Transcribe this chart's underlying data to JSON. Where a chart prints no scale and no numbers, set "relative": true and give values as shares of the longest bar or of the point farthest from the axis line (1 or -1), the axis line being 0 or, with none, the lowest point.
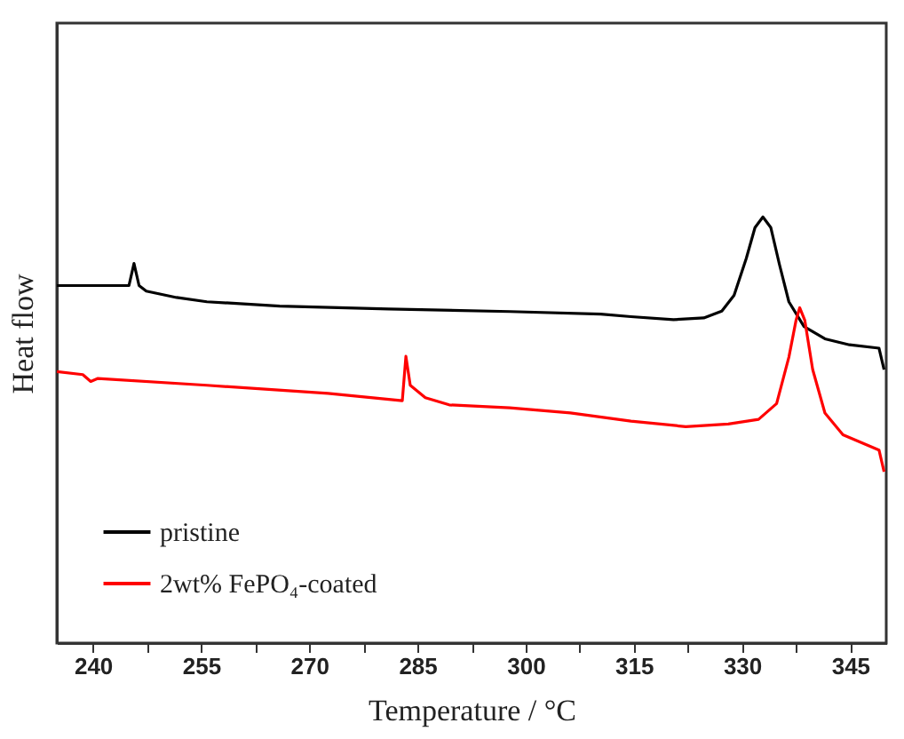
{
  "chart_data": {
    "type": "line",
    "xlabel": "Temperature / °C",
    "ylabel": "Heat flow",
    "relative": true,
    "grid": false,
    "legend": "bottom left",
    "marker": "none",
    "line_style": "solid",
    "xlim": [
      235,
      350
    ],
    "xticks": [
      240,
      {
        "value": 247.5,
        "label": null
      },
      255,
      {
        "value": 262.5,
        "label": null
      },
      270,
      {
        "value": 277.5,
        "label": null
      },
      285,
      {
        "value": 292.5,
        "label": null
      },
      300,
      {
        "value": 307.5,
        "label": null
      },
      315,
      {
        "value": 322.5,
        "label": null
      },
      330,
      {
        "value": 337.5,
        "label": null
      },
      345
    ],
    "series": [
      {
        "name": "pristine",
        "color": "#000000",
        "x": [
          235,
          245.0,
          245.7,
          246.4,
          247.4,
          251.6,
          255.8,
          265.9,
          281.0,
          297.8,
          310.4,
          314.6,
          320.5,
          324.7,
          327.2,
          328.9,
          330.6,
          331.8,
          332.9,
          334.0,
          335.2,
          336.5,
          338.6,
          341.5,
          344.9,
          349.0,
          349.7
        ],
        "values": [
          0.839,
          0.839,
          0.891,
          0.839,
          0.826,
          0.811,
          0.801,
          0.791,
          0.784,
          0.778,
          0.772,
          0.766,
          0.759,
          0.763,
          0.779,
          0.816,
          0.903,
          0.975,
          1,
          0.975,
          0.888,
          0.801,
          0.743,
          0.714,
          0.7,
          0.692,
          0.642
        ]
      },
      {
        "name": "2wt% FePO₄-coated",
        "color": "#ff0000",
        "x": [
          235,
          238.6,
          239.7,
          240.7,
          255.8,
          272.6,
          282.9,
          283.4,
          284.0,
          286.1,
          289.4,
          297.8,
          306.2,
          314.6,
          322.2,
          328.1,
          332.3,
          334.8,
          336.5,
          337.5,
          338.0,
          338.7,
          339.8,
          341.5,
          344.0,
          349.0,
          349.7
        ],
        "values": [
          0.637,
          0.63,
          0.614,
          0.621,
          0.605,
          0.586,
          0.569,
          0.673,
          0.605,
          0.576,
          0.559,
          0.552,
          0.54,
          0.521,
          0.508,
          0.514,
          0.525,
          0.562,
          0.671,
          0.758,
          0.787,
          0.758,
          0.642,
          0.54,
          0.489,
          0.453,
          0.402
        ]
      }
    ]
  }
}
